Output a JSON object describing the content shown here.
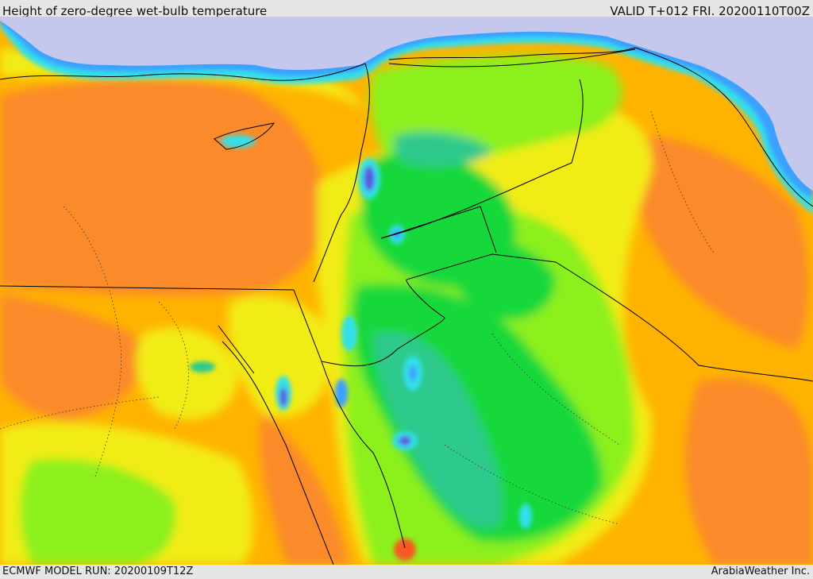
{
  "header": {
    "title": "Height of zero-degree wet-bulb temperature",
    "valid": "VALID T+012 FRI. 20200110T00Z"
  },
  "footer": {
    "model_run": "ECMWF MODEL RUN: 20200109T12Z",
    "credit": "ArabiaWeather Inc."
  },
  "map": {
    "field": "zero-degree wet-bulb height",
    "colors": {
      "sea": "#c5c8ec",
      "deep_blue": "#5a5ae0",
      "blue": "#3aa0ff",
      "cyan": "#33e0ea",
      "teal": "#2fc98c",
      "green": "#19d83a",
      "light_green": "#8cf01e",
      "yellow_green": "#d4f01a",
      "yellow": "#f2ec12",
      "amber": "#ffb300",
      "orange": "#fb8a2a",
      "red_orange": "#f55a22",
      "border": "#000000"
    }
  }
}
